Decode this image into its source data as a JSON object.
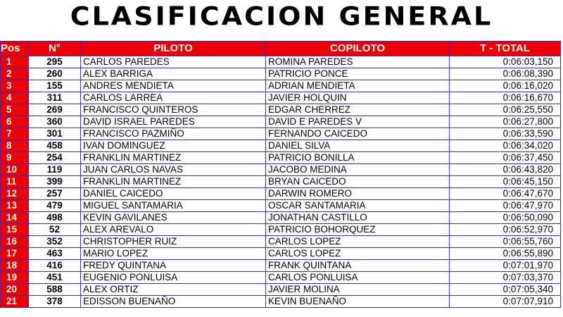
{
  "title": "CLASIFICACION GENERAL",
  "colors": {
    "header_bg": "#ee0000",
    "grid": "#2a2ae0"
  },
  "headers": [
    "Pos",
    "N°",
    "PILOTO",
    "COPILOTO",
    "T - TOTAL"
  ],
  "rows": [
    [
      "1",
      "295",
      "CARLOS PAREDES",
      "ROMINA PAREDES",
      "0:06:03,150"
    ],
    [
      "2",
      "260",
      "ALEX BARRIGA",
      "PATRICIO PONCE",
      "0:06:08,390"
    ],
    [
      "3",
      "155",
      "ANDRES MENDIETA",
      "ADRIAN MENDIETA",
      "0:06:16,020"
    ],
    [
      "4",
      "311",
      "CARLOS LARREA",
      "JAVIER HOLQUIN",
      "0:06:16,670"
    ],
    [
      "5",
      "269",
      "FRANCISCO QUINTEROS",
      "EDGAR CHERREZ",
      "0:06:25,550"
    ],
    [
      "6",
      "360",
      "DAVID ISRAEL PAREDES",
      "DAVID E PAREDES V",
      "0:06:27,800"
    ],
    [
      "7",
      "301",
      "FRANCISCO PAZMIÑO",
      "FERNANDO CAICEDO",
      "0:06:33,590"
    ],
    [
      "8",
      "458",
      "IVAN DOMINGUEZ",
      "DANIEL SILVA",
      "0:06:34,020"
    ],
    [
      "9",
      "254",
      "FRANKLIN MARTINEZ",
      "PATRICIO BONILLA",
      "0:06:37,450"
    ],
    [
      "10",
      "119",
      "JUAN CARLOS NAVAS",
      "JACOBO MEDINA",
      "0:06:43,820"
    ],
    [
      "11",
      "399",
      "FRANKLIN MARTINEZ",
      "BRYAN CAICEDO",
      "0:06:45,150"
    ],
    [
      "12",
      "257",
      "DANIEL CAICEDO",
      "DARWIN ROMERO",
      "0:06:47,670"
    ],
    [
      "13",
      "479",
      "MIGUEL SANTAMARIA",
      "OSCAR SANTAMARIA",
      "0:06:47,970"
    ],
    [
      "14",
      "498",
      "KEVIN GAVILANES",
      "JONATHAN CASTILLO",
      "0:06:50,090"
    ],
    [
      "15",
      "52",
      "ALEX AREVALO",
      "PATRICIO BOHORQUEZ",
      "0:06:52,970"
    ],
    [
      "16",
      "352",
      "CHRISTOPHER RUIZ",
      "CARLOS LOPEZ",
      "0:06:55,760"
    ],
    [
      "17",
      "463",
      "MARIO LOPEZ",
      "CARLOS LOPEZ",
      "0:06:55,890"
    ],
    [
      "18",
      "416",
      "FREDY QUINTANA",
      "FRANK QUINTANA",
      "0:07:01,970"
    ],
    [
      "19",
      "451",
      "EUGENIO PONLUISA",
      "CARLOS PONLUISA",
      "0:07:03,370"
    ],
    [
      "20",
      "588",
      "ALEX ORTIZ",
      "JAVIER MOLINA",
      "0:07:05,340"
    ],
    [
      "21",
      "378",
      "EDISSON BUENAÑO",
      "KEVIN BUENAÑO",
      "0:07:07,910"
    ]
  ]
}
